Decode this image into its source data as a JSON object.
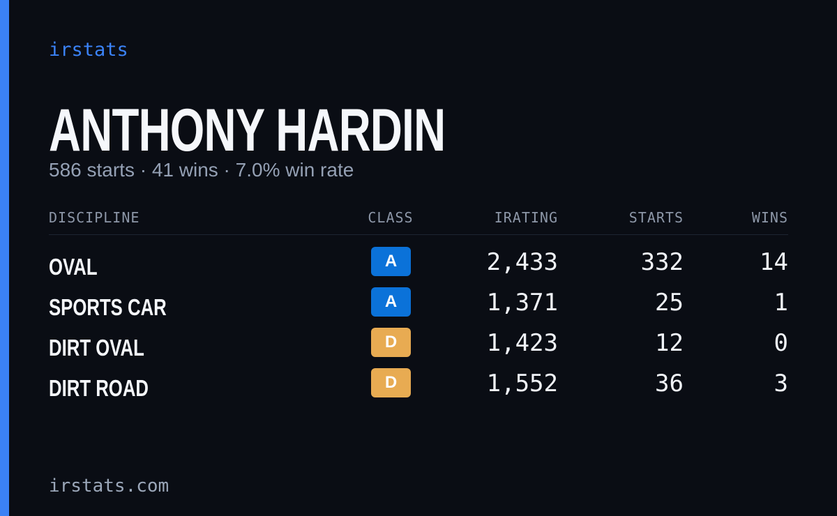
{
  "brand": "irstats",
  "driver": {
    "name": "ANTHONY HARDIN",
    "summary": "586 starts · 41 wins · 7.0% win rate"
  },
  "table": {
    "headers": [
      "DISCIPLINE",
      "CLASS",
      "IRATING",
      "STARTS",
      "WINS"
    ],
    "rows": [
      {
        "discipline": "OVAL",
        "class": "A",
        "class_color": "#0b72d9",
        "irating": "2,433",
        "starts": "332",
        "wins": "14"
      },
      {
        "discipline": "SPORTS CAR",
        "class": "A",
        "class_color": "#0b72d9",
        "irating": "1,371",
        "starts": "25",
        "wins": "1"
      },
      {
        "discipline": "DIRT OVAL",
        "class": "D",
        "class_color": "#e8ab52",
        "irating": "1,423",
        "starts": "12",
        "wins": "0"
      },
      {
        "discipline": "DIRT ROAD",
        "class": "D",
        "class_color": "#e8ab52",
        "irating": "1,552",
        "starts": "36",
        "wins": "3"
      }
    ]
  },
  "footer": "irstats.com"
}
